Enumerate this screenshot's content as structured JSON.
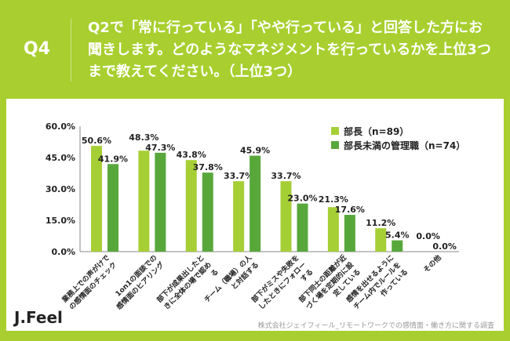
{
  "header": {
    "q": "Q4",
    "title": "Q2で「常に行っている」「やや行っている」と回答した方にお聞きします。どのようなマネジメントを行っているかを上位3つまで教えてください。（上位3つ）"
  },
  "footer": {
    "logo": "J.Feel",
    "source": "株式会社ジェイフィール_リモートワークでの感情面・働き方に関する調査"
  },
  "chart_data": {
    "type": "bar",
    "categories": [
      "業務上での声がけでの感情面のチェック",
      "1on1の面談での感情面のヒアリング",
      "部下が成果出したときに全体の場で認める",
      "チーム（職場）の人と対話する",
      "部下がミスや失敗をしたときにフォローする",
      "部下同士の距離が近づく場を定期的に設定している",
      "感情を出せるようにチーム内でルールを作っている",
      "その他"
    ],
    "series": [
      {
        "name": "部長（n=89）",
        "color": "#a6cf36",
        "values": [
          50.6,
          48.3,
          43.8,
          33.7,
          33.7,
          21.3,
          11.2,
          0.0
        ]
      },
      {
        "name": "部長未満の管理職（n=74）",
        "color": "#58a73b",
        "values": [
          41.9,
          47.3,
          37.8,
          45.9,
          23.0,
          17.6,
          5.4,
          0.0
        ]
      }
    ],
    "yticks": [
      "0.0%",
      "15.0%",
      "30.0%",
      "45.0%",
      "60.0%"
    ],
    "ylim": [
      0,
      60
    ],
    "legend": "top-right",
    "grid": false
  }
}
